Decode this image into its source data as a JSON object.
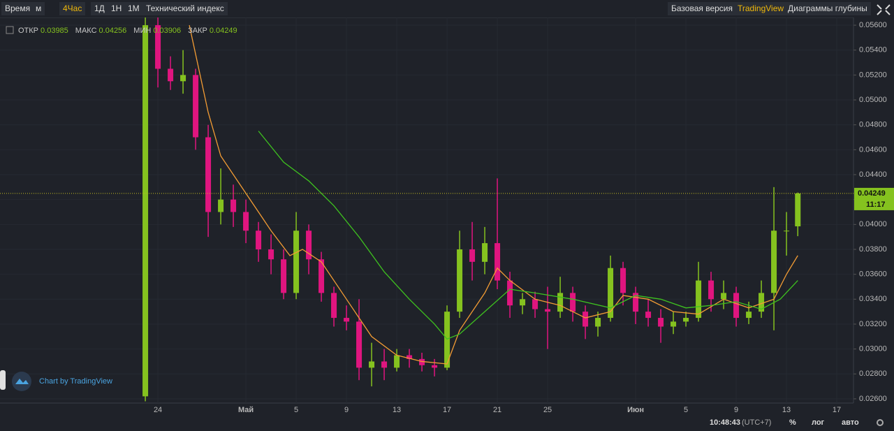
{
  "toolbar": {
    "left": [
      "Время",
      "м",
      "4Час",
      "1Д",
      "1Н",
      "1М",
      "Технический индекс"
    ],
    "right": [
      "Базовая версия",
      "TradingView",
      "Диаграммы глубины"
    ]
  },
  "legend": {
    "open": "ОТКР",
    "high": "МАКС",
    "low": "МИН",
    "close": "ЗАКР"
  },
  "watermark": "Chart by TradingView",
  "countdown": "11:17",
  "status": {
    "time": "10:48:43",
    "tz": "(UTC+7)",
    "percent": "%",
    "log": "лог",
    "auto": "авто"
  },
  "chart_data": {
    "type": "candlestick",
    "up_color": "#85c21f",
    "down_color": "#e0157f",
    "xlim": [
      -12.56,
      55.33
    ],
    "ylim": [
      0.02566,
      0.05662
    ],
    "xticks": [
      {
        "value": 0,
        "label": "24"
      },
      {
        "value": 7,
        "label": "Май"
      },
      {
        "value": 11,
        "label": "5"
      },
      {
        "value": 15,
        "label": "9"
      },
      {
        "value": 19,
        "label": "13"
      },
      {
        "value": 23,
        "label": "17"
      },
      {
        "value": 27,
        "label": "21"
      },
      {
        "value": 31,
        "label": "25"
      },
      {
        "value": 38,
        "label": "Июн"
      },
      {
        "value": 42,
        "label": "5"
      },
      {
        "value": 46,
        "label": "9"
      },
      {
        "value": 50,
        "label": "13"
      },
      {
        "value": 54,
        "label": "17"
      }
    ],
    "yticks": [
      {
        "value": 0.026,
        "label": "0.02600"
      },
      {
        "value": 0.028,
        "label": "0.02800"
      },
      {
        "value": 0.03,
        "label": "0.03000"
      },
      {
        "value": 0.032,
        "label": "0.03200"
      },
      {
        "value": 0.034,
        "label": "0.03400"
      },
      {
        "value": 0.036,
        "label": "0.03600"
      },
      {
        "value": 0.038,
        "label": "0.03800"
      },
      {
        "value": 0.04,
        "label": "0.04000"
      },
      {
        "value": 0.042,
        "label": "0.04200"
      },
      {
        "value": 0.044,
        "label": "0.04400"
      },
      {
        "value": 0.046,
        "label": "0.04600"
      },
      {
        "value": 0.048,
        "label": "0.04800"
      },
      {
        "value": 0.05,
        "label": "0.05000"
      },
      {
        "value": 0.052,
        "label": "0.05200"
      },
      {
        "value": 0.054,
        "label": "0.05400"
      },
      {
        "value": 0.056,
        "label": "0.05600"
      }
    ],
    "grid": true,
    "x": [
      -1,
      0,
      1,
      2,
      3,
      4,
      5,
      6,
      7,
      8,
      9,
      10,
      11,
      12,
      13,
      14,
      15,
      16,
      17,
      18,
      19,
      20,
      21,
      22,
      23,
      24,
      25,
      26,
      27,
      28,
      29,
      30,
      31,
      32,
      33,
      34,
      35,
      36,
      37,
      38,
      39,
      40,
      41,
      42,
      43,
      44,
      45,
      46,
      47,
      48,
      49,
      50,
      50.9
    ],
    "open": [
      0.0262,
      0.056,
      0.0525,
      0.0515,
      0.052,
      0.047,
      0.041,
      0.042,
      0.041,
      0.0395,
      0.038,
      0.0372,
      0.0345,
      0.0395,
      0.0372,
      0.0345,
      0.0325,
      0.0322,
      0.0285,
      0.029,
      0.0285,
      0.0295,
      0.0292,
      0.0287,
      0.0285,
      0.033,
      0.038,
      0.037,
      0.0385,
      0.0355,
      0.0335,
      0.034,
      0.0332,
      0.033,
      0.0345,
      0.033,
      0.0318,
      0.0325,
      0.0365,
      0.0345,
      0.033,
      0.0325,
      0.0318,
      0.0322,
      0.0325,
      0.0355,
      0.034,
      0.0345,
      0.0325,
      0.033,
      0.0345,
      0.0395,
      0.03985
    ],
    "high": [
      0.0575,
      0.057,
      0.0535,
      0.054,
      0.0525,
      0.048,
      0.0445,
      0.0432,
      0.042,
      0.0402,
      0.0392,
      0.038,
      0.041,
      0.04,
      0.0378,
      0.035,
      0.0335,
      0.034,
      0.0305,
      0.03,
      0.03,
      0.03,
      0.0297,
      0.0292,
      0.0335,
      0.0395,
      0.0402,
      0.0398,
      0.0437,
      0.0362,
      0.0345,
      0.0346,
      0.035,
      0.0358,
      0.035,
      0.0335,
      0.033,
      0.0375,
      0.037,
      0.035,
      0.034,
      0.0332,
      0.033,
      0.033,
      0.037,
      0.0362,
      0.0355,
      0.035,
      0.0338,
      0.0355,
      0.043,
      0.041,
      0.04256
    ],
    "low": [
      0.0258,
      0.051,
      0.0508,
      0.0505,
      0.046,
      0.039,
      0.04,
      0.0398,
      0.0385,
      0.037,
      0.036,
      0.034,
      0.034,
      0.036,
      0.0338,
      0.0318,
      0.0315,
      0.0275,
      0.027,
      0.0275,
      0.0282,
      0.0285,
      0.0282,
      0.0278,
      0.0283,
      0.0325,
      0.0355,
      0.036,
      0.0348,
      0.0325,
      0.0328,
      0.0325,
      0.03,
      0.0325,
      0.0322,
      0.0308,
      0.031,
      0.0322,
      0.0335,
      0.032,
      0.0318,
      0.0305,
      0.0312,
      0.0318,
      0.0322,
      0.033,
      0.0332,
      0.0318,
      0.032,
      0.0325,
      0.0315,
      0.0375,
      0.03906
    ],
    "close": [
      0.056,
      0.0525,
      0.0515,
      0.052,
      0.047,
      0.041,
      0.042,
      0.041,
      0.0395,
      0.038,
      0.0372,
      0.0345,
      0.0395,
      0.0372,
      0.0345,
      0.0325,
      0.0322,
      0.0285,
      0.029,
      0.0285,
      0.0295,
      0.0292,
      0.0287,
      0.0285,
      0.033,
      0.038,
      0.037,
      0.0385,
      0.0355,
      0.0335,
      0.034,
      0.0332,
      0.033,
      0.0345,
      0.033,
      0.0318,
      0.0325,
      0.0365,
      0.0345,
      0.033,
      0.0325,
      0.0318,
      0.0322,
      0.0325,
      0.0355,
      0.034,
      0.0345,
      0.0325,
      0.033,
      0.0345,
      0.0395,
      0.0395,
      0.04249
    ],
    "series": [
      {
        "color": "#f39c34",
        "x": [
          2.5,
          4,
          5,
          7,
          9,
          10.5,
          11.5,
          13,
          15,
          17,
          19,
          21,
          23,
          24,
          26,
          27,
          28,
          30,
          32,
          34,
          36,
          37,
          39,
          41,
          43,
          45,
          47,
          49,
          50,
          50.9
        ],
        "values": [
          0.056,
          0.049,
          0.0455,
          0.0425,
          0.0395,
          0.0375,
          0.038,
          0.037,
          0.034,
          0.031,
          0.0295,
          0.029,
          0.0288,
          0.0315,
          0.0345,
          0.0365,
          0.0355,
          0.034,
          0.0335,
          0.0325,
          0.033,
          0.0343,
          0.034,
          0.033,
          0.0328,
          0.034,
          0.0333,
          0.034,
          0.036,
          0.0375
        ]
      },
      {
        "color": "#3ec21f",
        "x": [
          8,
          10,
          12,
          14,
          16,
          18,
          20,
          22,
          23,
          24,
          26,
          28,
          30,
          33,
          36,
          38,
          40,
          42,
          44,
          46,
          48,
          49.5,
          50.9
        ],
        "values": [
          0.0475,
          0.045,
          0.0435,
          0.0415,
          0.039,
          0.0362,
          0.034,
          0.032,
          0.0308,
          0.0312,
          0.033,
          0.0348,
          0.0345,
          0.034,
          0.0333,
          0.0343,
          0.034,
          0.0333,
          0.0335,
          0.0338,
          0.0332,
          0.034,
          0.0355
        ]
      }
    ]
  }
}
